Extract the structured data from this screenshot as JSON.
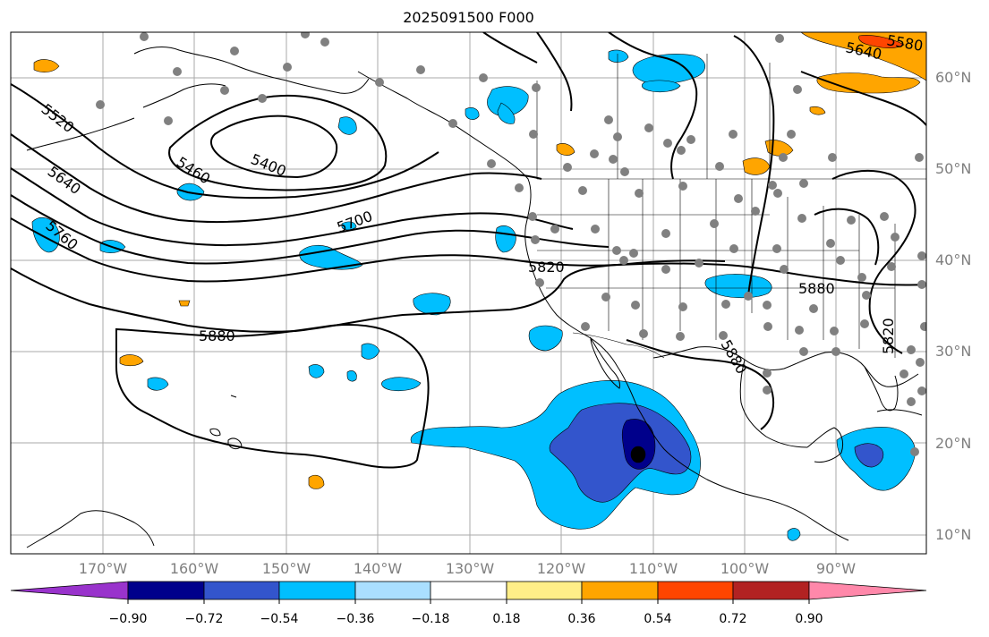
{
  "title": "2025091500 F000",
  "latitude_labels": [
    "60°N",
    "50°N",
    "40°N",
    "30°N",
    "20°N",
    "10°N"
  ],
  "longitude_labels": [
    "170°W",
    "160°W",
    "150°W",
    "140°W",
    "130°W",
    "120°W",
    "110°W",
    "100°W",
    "90°W"
  ],
  "contour_labels": [
    "5400",
    "5460",
    "5520",
    "5640",
    "5700",
    "5760",
    "5820",
    "5880",
    "5640",
    "5580",
    "5880",
    "5820",
    "5880"
  ],
  "colorbar": {
    "colors": [
      "#9933cc",
      "#00008b",
      "#3355cc",
      "#00bfff",
      "#aadfff",
      "#ffffff",
      "#ffee88",
      "#ffa500",
      "#ff4500",
      "#b22222",
      "#ff88aa"
    ],
    "tick_labels": [
      "−0.90",
      "−0.72",
      "−0.54",
      "−0.36",
      "−0.18",
      "0.18",
      "0.36",
      "0.54",
      "0.72",
      "0.90"
    ]
  }
}
